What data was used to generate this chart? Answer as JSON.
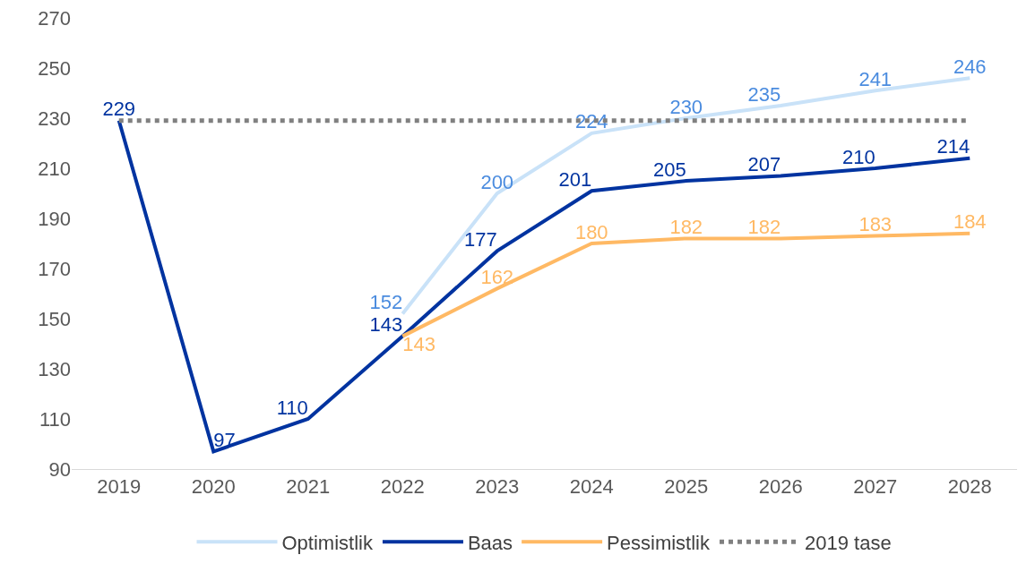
{
  "chart_data": {
    "type": "line",
    "categories": [
      "2019",
      "2020",
      "2021",
      "2022",
      "2023",
      "2024",
      "2025",
      "2026",
      "2027",
      "2028"
    ],
    "series": [
      {
        "name": "Optimistlik",
        "color": "#c9e2f8",
        "values": [
          null,
          null,
          null,
          152,
          200,
          224,
          230,
          235,
          241,
          246
        ],
        "value_labels": [
          null,
          null,
          null,
          "152",
          "200",
          "224",
          "230",
          "235",
          "241",
          "246"
        ]
      },
      {
        "name": "Baas",
        "color": "#0033a0",
        "values": [
          229,
          97,
          110,
          143,
          177,
          201,
          205,
          207,
          210,
          214
        ],
        "value_labels": [
          "229",
          "97",
          "110",
          "143",
          "177",
          "201",
          "205",
          "207",
          "210",
          "214"
        ]
      },
      {
        "name": "Pessimistlik",
        "color": "#ffb964",
        "values": [
          null,
          null,
          null,
          143,
          162,
          180,
          182,
          182,
          183,
          184
        ],
        "value_labels": [
          null,
          null,
          null,
          "143",
          "162",
          "180",
          "182",
          "182",
          "183",
          "184"
        ]
      },
      {
        "name": "2019 tase",
        "color": "#808080",
        "line_style": "dotted",
        "values": [
          229,
          229,
          229,
          229,
          229,
          229,
          229,
          229,
          229,
          229
        ]
      }
    ],
    "ylim": [
      90,
      270
    ],
    "yticks": [
      90,
      110,
      130,
      150,
      170,
      190,
      210,
      230,
      250,
      270
    ],
    "grid": false,
    "legend": "bottom",
    "marker": "none",
    "line_style": "solid"
  }
}
